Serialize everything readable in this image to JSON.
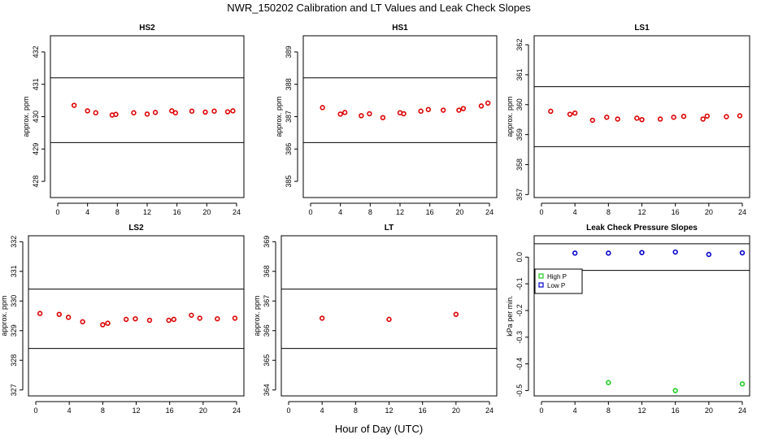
{
  "main_title": "NWR_150202  Calibration and LT Values and Leak Check Slopes",
  "x_axis_title": "Hour of Day (UTC)",
  "colors": {
    "points": "#dd0000",
    "high_p": "#22cc22",
    "low_p": "#0000cc",
    "axis": "#000000"
  },
  "chart_data": [
    {
      "type": "scatter",
      "title": "HS2",
      "xlabel": "",
      "ylabel": "approx. ppm",
      "xlim": [
        0,
        24
      ],
      "ylim": [
        427.5,
        432.5
      ],
      "xticks": [
        0,
        4,
        8,
        12,
        16,
        20,
        24
      ],
      "yticks": [
        428,
        429,
        430,
        431,
        432
      ],
      "hlines": [
        429.2,
        431.2
      ],
      "series": [
        {
          "x": [
            2.2,
            4.0,
            5.1,
            7.3,
            7.8,
            10.2,
            12.0,
            13.1,
            15.3,
            15.8,
            18.0,
            19.8,
            21.0,
            22.8,
            23.5
          ],
          "y": [
            430.35,
            430.18,
            430.12,
            430.05,
            430.07,
            430.12,
            430.08,
            430.13,
            430.18,
            430.12,
            430.17,
            430.14,
            430.17,
            430.15,
            430.18
          ]
        }
      ]
    },
    {
      "type": "scatter",
      "title": "HS1",
      "xlabel": "",
      "ylabel": "approx. ppm",
      "xlim": [
        0,
        24
      ],
      "ylim": [
        384.5,
        389.5
      ],
      "xticks": [
        0,
        4,
        8,
        12,
        16,
        20,
        24
      ],
      "yticks": [
        385,
        386,
        387,
        388,
        389
      ],
      "hlines": [
        386.2,
        388.2
      ],
      "series": [
        {
          "x": [
            1.6,
            4.0,
            4.6,
            6.8,
            7.9,
            9.7,
            12.0,
            12.5,
            14.8,
            15.8,
            17.8,
            19.9,
            20.5,
            22.9,
            23.8
          ],
          "y": [
            387.28,
            387.08,
            387.13,
            387.03,
            387.09,
            386.97,
            387.12,
            387.09,
            387.17,
            387.22,
            387.2,
            387.2,
            387.25,
            387.33,
            387.42
          ]
        }
      ]
    },
    {
      "type": "scatter",
      "title": "LS1",
      "xlabel": "",
      "ylabel": "approx. ppm",
      "xlim": [
        0,
        24
      ],
      "ylim": [
        356.9,
        362.3
      ],
      "xticks": [
        0,
        4,
        8,
        12,
        16,
        20,
        24
      ],
      "yticks": [
        357,
        358,
        359,
        360,
        361,
        362
      ],
      "hlines": [
        358.6,
        360.6
      ],
      "series": [
        {
          "x": [
            1.1,
            3.4,
            4.0,
            6.1,
            7.8,
            9.1,
            11.4,
            12.0,
            14.2,
            15.8,
            17.0,
            19.3,
            19.8,
            22.1,
            23.7
          ],
          "y": [
            359.78,
            359.68,
            359.72,
            359.48,
            359.58,
            359.52,
            359.55,
            359.5,
            359.52,
            359.58,
            359.61,
            359.52,
            359.62,
            359.6,
            359.63
          ]
        }
      ]
    },
    {
      "type": "scatter",
      "title": "LS2",
      "xlabel": "",
      "ylabel": "approx. ppm",
      "xlim": [
        0,
        24
      ],
      "ylim": [
        326.8,
        332.2
      ],
      "xticks": [
        0,
        4,
        8,
        12,
        16,
        20,
        24
      ],
      "yticks": [
        327,
        328,
        329,
        330,
        331,
        332
      ],
      "hlines": [
        328.4,
        330.4
      ],
      "series": [
        {
          "x": [
            0.5,
            2.8,
            3.9,
            5.6,
            8.0,
            8.6,
            10.8,
            11.9,
            13.6,
            15.9,
            16.5,
            18.6,
            19.6,
            21.7,
            23.8
          ],
          "y": [
            329.58,
            329.55,
            329.45,
            329.3,
            329.2,
            329.25,
            329.38,
            329.4,
            329.35,
            329.35,
            329.38,
            329.52,
            329.42,
            329.4,
            329.42
          ]
        }
      ]
    },
    {
      "type": "scatter",
      "title": "LT",
      "xlabel": "",
      "ylabel": "approx. ppm",
      "xlim": [
        0,
        24
      ],
      "ylim": [
        363.8,
        369.2
      ],
      "xticks": [
        0,
        4,
        8,
        12,
        16,
        20,
        24
      ],
      "yticks": [
        364,
        365,
        366,
        367,
        368,
        369
      ],
      "hlines": [
        365.4,
        367.4
      ],
      "series": [
        {
          "x": [
            4.0,
            12.0,
            20.0
          ],
          "y": [
            366.42,
            366.38,
            366.55
          ]
        }
      ]
    },
    {
      "type": "scatter",
      "title": "Leak Check Pressure Slopes",
      "xlabel": "",
      "ylabel": "kPa per min.",
      "xlim": [
        0,
        24
      ],
      "ylim": [
        -0.52,
        0.08
      ],
      "xticks": [
        0,
        4,
        8,
        12,
        16,
        20,
        24
      ],
      "yticks": [
        0.0,
        -0.1,
        -0.2,
        -0.3,
        -0.4,
        -0.5
      ],
      "ytick_labels": [
        "0.0",
        "-0.1",
        "-0.2",
        "-0.3",
        "-0.4",
        "-0.5"
      ],
      "hlines": [
        0.05,
        -0.05
      ],
      "legend": {
        "position": "top-left",
        "entries": [
          "High P",
          "Low P"
        ]
      },
      "series": [
        {
          "name": "High P",
          "x": [
            8.0,
            16.0,
            24.0
          ],
          "y": [
            -0.47,
            -0.5,
            -0.475
          ]
        },
        {
          "name": "Low P",
          "x": [
            4.0,
            8.0,
            12.0,
            16.0,
            20.0,
            24.0
          ],
          "y": [
            0.015,
            0.015,
            0.017,
            0.019,
            0.01,
            0.016
          ]
        }
      ]
    }
  ]
}
